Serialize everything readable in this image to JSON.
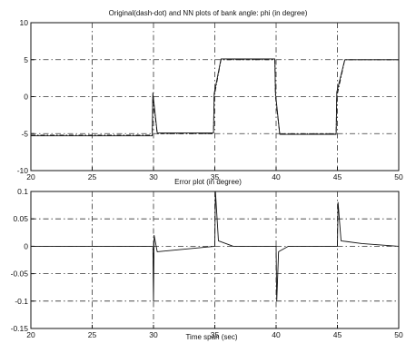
{
  "chart_data": [
    {
      "type": "line",
      "title": "Original(dash-dot) and NN plots of bank angle: phi (in degree)",
      "xlabel": "",
      "ylabel": "",
      "xlim": [
        20,
        50
      ],
      "ylim": [
        -10,
        10
      ],
      "xticks": [
        20,
        25,
        30,
        35,
        40,
        45,
        50
      ],
      "yticks": [
        -10,
        -5,
        0,
        5,
        10
      ],
      "grid": true,
      "series": [
        {
          "style": "dash-dot",
          "x": [
            20,
            29.9,
            29.95,
            30.3,
            34.9,
            34.95,
            35.5,
            39.9,
            39.95,
            40.3,
            44.9,
            44.95,
            45.6,
            50
          ],
          "y": [
            -5.2,
            -5.2,
            0,
            -5.0,
            -5.0,
            0,
            5.0,
            5.0,
            0,
            -5.0,
            -5.0,
            0,
            5.0,
            5.0
          ]
        },
        {
          "style": "solid",
          "x": [
            20,
            29.9,
            29.95,
            30.3,
            34.9,
            34.95,
            35.5,
            39.9,
            39.95,
            40.3,
            44.9,
            44.95,
            45.6,
            50
          ],
          "y": [
            -5.3,
            -5.3,
            0.5,
            -4.9,
            -4.9,
            0.4,
            5.1,
            5.1,
            0.5,
            -5.1,
            -5.1,
            0.6,
            5.0,
            5.0
          ]
        }
      ]
    },
    {
      "type": "line",
      "title": "Error plot (in degree)",
      "xlabel": "Time span (sec)",
      "ylabel": "",
      "xlim": [
        20,
        50
      ],
      "ylim": [
        -0.15,
        0.1
      ],
      "xticks": [
        20,
        25,
        30,
        35,
        40,
        45,
        50
      ],
      "yticks": [
        -0.15,
        -0.1,
        -0.05,
        0,
        0.05,
        0.1
      ],
      "grid": true,
      "series": [
        {
          "style": "solid",
          "x": [
            20,
            29.95,
            30.0,
            30.05,
            30.3,
            35.0,
            35.05,
            35.3,
            36.5,
            40.0,
            40.05,
            40.2,
            41.0,
            45.0,
            45.05,
            45.3,
            47.0,
            50
          ],
          "y": [
            0,
            0,
            -0.1,
            0.02,
            -0.01,
            0,
            0.1,
            0.01,
            0,
            0,
            -0.1,
            -0.01,
            0,
            0,
            0.08,
            0.01,
            0.005,
            0
          ]
        }
      ]
    }
  ]
}
